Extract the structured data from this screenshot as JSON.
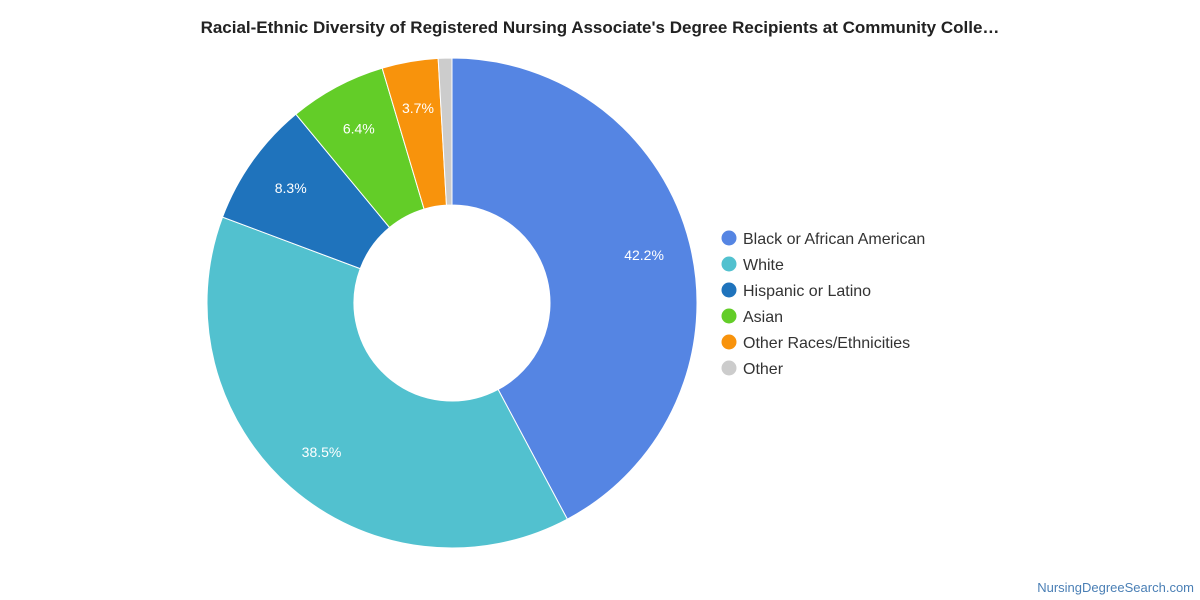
{
  "chart_data": {
    "type": "pie",
    "variant": "donut",
    "title": "Racial-Ethnic Diversity of Registered Nursing Associate's Degree Recipients at Community Colle…",
    "categories": [
      "Black or African American",
      "White",
      "Hispanic or Latino",
      "Asian",
      "Other Races/Ethnicities",
      "Other"
    ],
    "values": [
      42.2,
      38.5,
      8.3,
      6.4,
      3.7,
      0.9
    ],
    "value_labels": [
      "42.2%",
      "38.5%",
      "8.3%",
      "6.4%",
      "3.7%",
      ""
    ],
    "colors": [
      "#5585e3",
      "#52c1cf",
      "#1f73bc",
      "#63cd28",
      "#f8930c",
      "#cccccc"
    ],
    "legend_position": "right"
  },
  "credit": "NursingDegreeSearch.com"
}
